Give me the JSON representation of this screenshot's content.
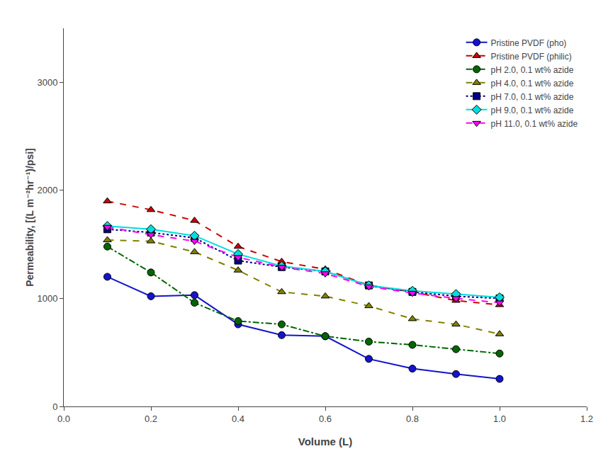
{
  "chart_data": {
    "type": "line",
    "xlabel": "Volume (L)",
    "ylabel": "Permeability, [(L m⁻²hr⁻¹)/psi]",
    "x": [
      0.1,
      0.2,
      0.3,
      0.4,
      0.5,
      0.6,
      0.7,
      0.8,
      0.9,
      1.0
    ],
    "series": [
      {
        "name": "Pristine PVDF (pho)",
        "color": "#1414CC",
        "marker": "circle",
        "line_style": "solid",
        "values": [
          1200,
          1020,
          1030,
          760,
          660,
          650,
          440,
          350,
          300,
          255
        ]
      },
      {
        "name": "Pristine PVDF (philic)",
        "color": "#CC0000",
        "marker": "triangle-up",
        "line_style": "dash",
        "values": [
          1900,
          1820,
          1720,
          1480,
          1340,
          1270,
          1120,
          1060,
          980,
          940
        ]
      },
      {
        "name": "pH 2.0, 0.1 wt% azide",
        "color": "#006600",
        "marker": "circle",
        "line_style": "dashdot",
        "values": [
          1480,
          1240,
          960,
          790,
          760,
          650,
          600,
          570,
          530,
          490
        ]
      },
      {
        "name": "pH 4.0, 0.1 wt% azide",
        "color": "#808000",
        "marker": "triangle-up",
        "line_style": "dash",
        "values": [
          1540,
          1530,
          1430,
          1260,
          1060,
          1020,
          930,
          810,
          760,
          670
        ]
      },
      {
        "name": "pH 7.0, 0.1 wt% azide",
        "color": "#000080",
        "marker": "square",
        "line_style": "dot",
        "values": [
          1640,
          1610,
          1560,
          1350,
          1290,
          1250,
          1120,
          1060,
          1020,
          1000
        ]
      },
      {
        "name": "pH 9.0, 0.1 wt% azide",
        "color": "#00DDDD",
        "marker": "diamond",
        "line_style": "solid",
        "values": [
          1670,
          1640,
          1580,
          1410,
          1300,
          1250,
          1120,
          1070,
          1040,
          1010
        ]
      },
      {
        "name": "pH 11.0, 0.1 wt% azide",
        "color": "#FF00FF",
        "marker": "triangle-down",
        "line_style": "dash",
        "values": [
          1660,
          1590,
          1530,
          1380,
          1290,
          1230,
          1110,
          1050,
          1000,
          960
        ]
      }
    ],
    "xlim": [
      0.0,
      1.2
    ],
    "xticks": [
      {
        "value": 0.0,
        "label": "0.0"
      },
      0.2,
      0.4,
      0.6,
      0.8,
      {
        "value": 1.0,
        "label": "1.0"
      },
      1.2
    ],
    "ylim": [
      0,
      3500
    ],
    "yticks": [
      0,
      1000,
      2000,
      3000
    ],
    "grid": false,
    "legend": "upper right"
  }
}
